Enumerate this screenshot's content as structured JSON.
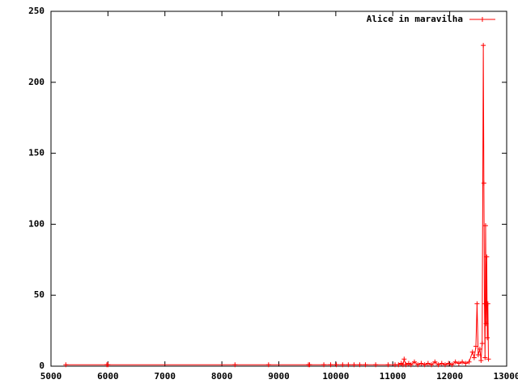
{
  "chart_data": {
    "type": "line",
    "xlim": [
      5000,
      13000
    ],
    "xticks": [
      5000,
      6000,
      7000,
      8000,
      9000,
      10000,
      11000,
      12000,
      13000
    ],
    "ylim": [
      0,
      250
    ],
    "yticks": [
      0,
      50,
      100,
      150,
      200,
      250
    ],
    "legend": "top-right",
    "series": [
      {
        "name": "Alice in maravilha",
        "color": "#ff0000",
        "x": [
          5260,
          5980,
          6000,
          8230,
          8820,
          9520,
          9540,
          9790,
          9910,
          10010,
          10120,
          10220,
          10320,
          10420,
          10520,
          10700,
          10920,
          11040,
          11100,
          11150,
          11180,
          11200,
          11230,
          11280,
          11320,
          11380,
          11440,
          11500,
          11560,
          11620,
          11680,
          11740,
          11800,
          11860,
          11920,
          11980,
          12040,
          12100,
          12160,
          12220,
          12280,
          12340,
          12400,
          12430,
          12460,
          12480,
          12500,
          12530,
          12550,
          12570,
          12590,
          12600,
          12610,
          12620,
          12630,
          12640,
          12650,
          12660,
          12670,
          12680
        ],
        "values": [
          1,
          1,
          1,
          1,
          1,
          1,
          1,
          1,
          1,
          1,
          1,
          1,
          1,
          1,
          1,
          1,
          1,
          1,
          1,
          2,
          1,
          5,
          1,
          2,
          1,
          3,
          1,
          2,
          1,
          2,
          1,
          3,
          1,
          2,
          1,
          2,
          1,
          3,
          2,
          3,
          2,
          3,
          10,
          6,
          14,
          44,
          8,
          12,
          4,
          16,
          226,
          129,
          44,
          6,
          99,
          30,
          77,
          20,
          44,
          5
        ]
      }
    ]
  }
}
